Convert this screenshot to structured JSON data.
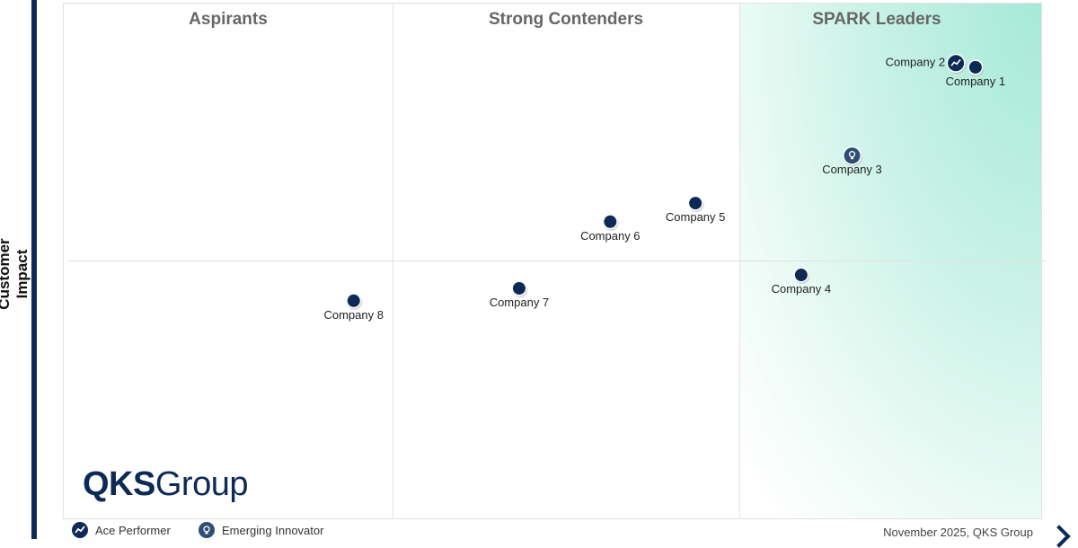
{
  "chart_data": {
    "type": "scatter",
    "title": "",
    "xlabel": "",
    "ylabel": "Customer Impact",
    "xlim": [
      0,
      100
    ],
    "ylim": [
      0,
      100
    ],
    "quadrants": [
      "Aspirants",
      "Strong Contenders",
      "SPARK Leaders"
    ],
    "points": [
      {
        "name": "Company 1",
        "x": 93.2,
        "y": 87.5,
        "type": "standard",
        "label_pos": "below"
      },
      {
        "name": "Company 2",
        "x": 91.2,
        "y": 88.3,
        "type": "ace",
        "label_pos": "left"
      },
      {
        "name": "Company 3",
        "x": 80.6,
        "y": 70.4,
        "type": "innovator",
        "label_pos": "below"
      },
      {
        "name": "Company 4",
        "x": 75.4,
        "y": 47.3,
        "type": "standard",
        "label_pos": "below"
      },
      {
        "name": "Company 5",
        "x": 64.6,
        "y": 61.2,
        "type": "standard",
        "label_pos": "below"
      },
      {
        "name": "Company 6",
        "x": 55.9,
        "y": 57.6,
        "type": "standard",
        "label_pos": "below"
      },
      {
        "name": "Company 7",
        "x": 46.6,
        "y": 44.7,
        "type": "standard",
        "label_pos": "below"
      },
      {
        "name": "Company 8",
        "x": 29.7,
        "y": 42.3,
        "type": "standard",
        "label_pos": "below"
      }
    ],
    "legend": [
      {
        "icon": "ace-performer-icon",
        "label": "Ace Performer"
      },
      {
        "icon": "emerging-innovator-icon",
        "label": "Emerging Innovator"
      }
    ],
    "legend_placement": "bottom-left"
  },
  "logo": {
    "bold": "QKS",
    "light": "Group"
  },
  "footer": "November 2025, QKS Group",
  "colors": {
    "marker": "#0d2a57",
    "leaders": "#a6e9d7"
  }
}
